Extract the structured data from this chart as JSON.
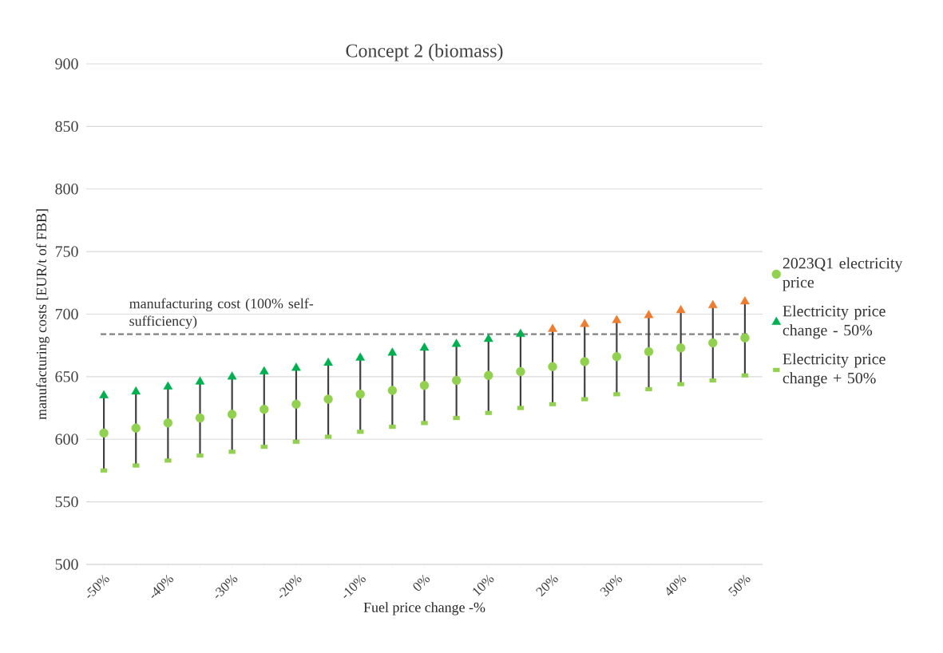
{
  "chart_data": {
    "type": "scatter",
    "title": "Concept 2 (biomass)",
    "xlabel": "Fuel price change -%",
    "ylabel": "manufacturing costs [EUR/t of FBB]",
    "categories": [
      "-50%",
      null,
      "-40%",
      null,
      "-30%",
      null,
      "-20%",
      null,
      "-10%",
      null,
      "0%",
      null,
      "10%",
      null,
      "20%",
      null,
      "30%",
      null,
      "40%",
      null,
      "50%"
    ],
    "ylim": [
      500,
      900
    ],
    "yticks": [
      500,
      550,
      600,
      650,
      700,
      750,
      800,
      850,
      900
    ],
    "grid": "y",
    "legend": "right",
    "series": [
      {
        "name": "2023Q1 electricity price",
        "color": "#92d050",
        "marker": "circle",
        "values": [
          605,
          609,
          613,
          617,
          620,
          624,
          628,
          632,
          636,
          639,
          643,
          647,
          651,
          654,
          658,
          662,
          666,
          670,
          673,
          677,
          681
        ]
      },
      {
        "name": "Electricity price change - 50%",
        "marker": "triangle",
        "colors": [
          "#00b050",
          "#00b050",
          "#00b050",
          "#00b050",
          "#00b050",
          "#00b050",
          "#00b050",
          "#00b050",
          "#00b050",
          "#00b050",
          "#00b050",
          "#00b050",
          "#00b050",
          "#00b050",
          "#ed7d31",
          "#ed7d31",
          "#ed7d31",
          "#ed7d31",
          "#ed7d31",
          "#ed7d31",
          "#ed7d31"
        ],
        "values": [
          635,
          638,
          642,
          646,
          650,
          654,
          657,
          661,
          665,
          669,
          673,
          676,
          680,
          684,
          688,
          692,
          695,
          699,
          703,
          707,
          710
        ]
      },
      {
        "name": "Electricity price change + 50%",
        "color": "#92d050",
        "marker": "square",
        "values": [
          575,
          579,
          583,
          587,
          590,
          594,
          598,
          602,
          606,
          610,
          613,
          617,
          621,
          625,
          628,
          632,
          636,
          640,
          644,
          647,
          651
        ]
      }
    ],
    "ref_lines": [
      {
        "axis": "y",
        "value": 684,
        "label": "manufacturing cost (100% self-sufficiency)",
        "color": "#808080",
        "line_style": "dashed"
      }
    ]
  }
}
